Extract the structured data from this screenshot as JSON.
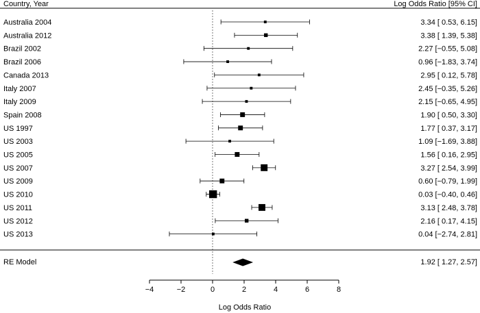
{
  "chart_data": {
    "type": "forest",
    "header": {
      "study_col": "Country, Year",
      "estimate_col": "Log Odds Ratio [95% CI]"
    },
    "xlabel": "Log Odds Ratio",
    "xlim": [
      -4,
      8
    ],
    "xticks": [
      -4,
      -2,
      0,
      2,
      4,
      6,
      8
    ],
    "xtick_labels": [
      "−4",
      "−2",
      "0",
      "2",
      "4",
      "6",
      "8"
    ],
    "reference_line": 0,
    "studies": [
      {
        "label": "Australia 2004",
        "estimate": 3.34,
        "lower": 0.53,
        "upper": 6.15,
        "text": "3.34 [ 0.53, 6.15]",
        "weight": 1
      },
      {
        "label": "Australia 2012",
        "estimate": 3.38,
        "lower": 1.39,
        "upper": 5.38,
        "text": "3.38 [ 1.39, 5.38]",
        "weight": 2
      },
      {
        "label": "Brazil 2002",
        "estimate": 2.27,
        "lower": -0.55,
        "upper": 5.08,
        "text": "2.27 [−0.55, 5.08]",
        "weight": 1
      },
      {
        "label": "Brazil 2006",
        "estimate": 0.96,
        "lower": -1.83,
        "upper": 3.74,
        "text": "0.96 [−1.83, 3.74]",
        "weight": 1
      },
      {
        "label": "Canada 2013",
        "estimate": 2.95,
        "lower": 0.12,
        "upper": 5.78,
        "text": "2.95 [ 0.12, 5.78]",
        "weight": 1
      },
      {
        "label": "Italy 2007",
        "estimate": 2.45,
        "lower": -0.35,
        "upper": 5.26,
        "text": "2.45 [−0.35, 5.26]",
        "weight": 1
      },
      {
        "label": "Italy 2009",
        "estimate": 2.15,
        "lower": -0.65,
        "upper": 4.95,
        "text": "2.15 [−0.65, 4.95]",
        "weight": 1
      },
      {
        "label": "Spain 2008",
        "estimate": 1.9,
        "lower": 0.5,
        "upper": 3.3,
        "text": "1.90 [ 0.50, 3.30]",
        "weight": 3
      },
      {
        "label": "US 1997",
        "estimate": 1.77,
        "lower": 0.37,
        "upper": 3.17,
        "text": "1.77 [ 0.37, 3.17]",
        "weight": 3
      },
      {
        "label": "US 2003",
        "estimate": 1.09,
        "lower": -1.69,
        "upper": 3.88,
        "text": "1.09 [−1.69, 3.88]",
        "weight": 1
      },
      {
        "label": "US 2005",
        "estimate": 1.56,
        "lower": 0.16,
        "upper": 2.95,
        "text": "1.56 [ 0.16, 2.95]",
        "weight": 3
      },
      {
        "label": "US 2007",
        "estimate": 3.27,
        "lower": 2.54,
        "upper": 3.99,
        "text": "3.27 [ 2.54, 3.99]",
        "weight": 5
      },
      {
        "label": "US 2009",
        "estimate": 0.6,
        "lower": -0.79,
        "upper": 1.99,
        "text": "0.60 [−0.79, 1.99]",
        "weight": 3
      },
      {
        "label": "US 2010",
        "estimate": 0.03,
        "lower": -0.4,
        "upper": 0.46,
        "text": "0.03 [−0.40, 0.46]",
        "weight": 6
      },
      {
        "label": "US 2011",
        "estimate": 3.13,
        "lower": 2.48,
        "upper": 3.78,
        "text": "3.13 [ 2.48, 3.78]",
        "weight": 5
      },
      {
        "label": "US 2012",
        "estimate": 2.16,
        "lower": 0.17,
        "upper": 4.15,
        "text": "2.16 [ 0.17, 4.15]",
        "weight": 2
      },
      {
        "label": "US 2013",
        "estimate": 0.04,
        "lower": -2.74,
        "upper": 2.81,
        "text": "0.04 [−2.74, 2.81]",
        "weight": 1
      }
    ],
    "summary": {
      "label": "RE Model",
      "estimate": 1.92,
      "lower": 1.27,
      "upper": 2.57,
      "text": "1.92 [ 1.27, 2.57]"
    }
  }
}
